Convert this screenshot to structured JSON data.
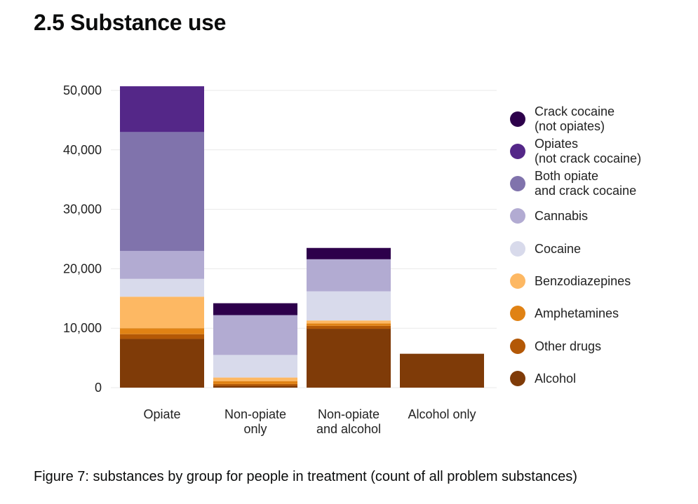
{
  "heading": "2.5 Substance use",
  "caption": "Figure 7: substances by group for people in treatment (count of all problem substances)",
  "chart_data": {
    "type": "bar",
    "stacked": true,
    "title": "",
    "xlabel": "",
    "ylabel": "",
    "ylim": [
      0,
      50000
    ],
    "yticks": [
      0,
      10000,
      20000,
      30000,
      40000,
      50000
    ],
    "ytick_labels": [
      "0",
      "10,000",
      "20,000",
      "30,000",
      "40,000",
      "50,000"
    ],
    "grid": true,
    "legend_position": "right",
    "categories": [
      "Opiate",
      "Non-opiate only",
      "Non-opiate and alcohol",
      "Alcohol only"
    ],
    "category_labels": [
      [
        "Opiate"
      ],
      [
        "Non-opiate",
        "only"
      ],
      [
        "Non-opiate",
        "and alcohol"
      ],
      [
        "Alcohol only"
      ]
    ],
    "series": [
      {
        "name": "Alcohol",
        "legend_lines": [
          "Alcohol"
        ],
        "color": "#7f3b08",
        "values": [
          8200,
          300,
          9900,
          5700
        ]
      },
      {
        "name": "Other drugs",
        "legend_lines": [
          "Other drugs"
        ],
        "color": "#b35806",
        "values": [
          800,
          300,
          500,
          0
        ]
      },
      {
        "name": "Amphetamines",
        "legend_lines": [
          "Amphetamines"
        ],
        "color": "#e08214",
        "values": [
          1000,
          500,
          400,
          0
        ]
      },
      {
        "name": "Benzodiazepines",
        "legend_lines": [
          "Benzodiazepines"
        ],
        "color": "#fdb863",
        "values": [
          5300,
          600,
          500,
          0
        ]
      },
      {
        "name": "Cocaine",
        "legend_lines": [
          "Cocaine"
        ],
        "color": "#d8daeb",
        "values": [
          3000,
          3800,
          4900,
          0
        ]
      },
      {
        "name": "Cannabis",
        "legend_lines": [
          "Cannabis"
        ],
        "color": "#b2abd2",
        "values": [
          4700,
          6700,
          5400,
          0
        ]
      },
      {
        "name": "Both opiate and crack cocaine",
        "legend_lines": [
          "Both opiate",
          "and crack cocaine"
        ],
        "color": "#8073ac",
        "values": [
          20000,
          0,
          0,
          0
        ]
      },
      {
        "name": "Opiates (not crack cocaine)",
        "legend_lines": [
          "Opiates",
          "(not crack cocaine)"
        ],
        "color": "#542788",
        "values": [
          7700,
          0,
          0,
          0
        ]
      },
      {
        "name": "Crack cocaine (not opiates)",
        "legend_lines": [
          "Crack cocaine",
          "(not opiates)"
        ],
        "color": "#2d004b",
        "values": [
          0,
          2000,
          1900,
          0
        ]
      }
    ]
  }
}
